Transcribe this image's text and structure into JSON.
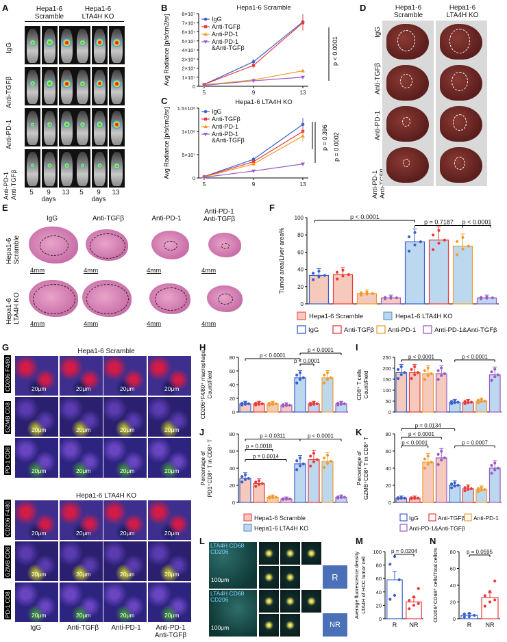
{
  "panel_labels": {
    "A": "A",
    "B": "B",
    "C": "C",
    "D": "D",
    "E": "E",
    "F": "F",
    "G": "G",
    "H": "H",
    "I": "I",
    "J": "J",
    "K": "K",
    "L": "L",
    "M": "M",
    "N": "N"
  },
  "panelA": {
    "col_groups": [
      "Hepa1-6\nScramble",
      "Hepa1-6\nLTA4H KO"
    ],
    "row_labels": [
      "IgG",
      "Anti-TGFβ",
      "Anti-PD-1",
      "Anti-PD-1\nAnti-TGFβ"
    ],
    "day_ticks": [
      "5",
      "9",
      "13",
      "5",
      "9",
      "13"
    ],
    "xlabel": "days"
  },
  "panelB": {
    "title": "Hepa1-6 Scramble",
    "ylabel": "Avg Radiance [p/s/cm2/sr]",
    "pvalue": "p < 0.0001"
  },
  "panelC": {
    "title": "Hepa1-6 LTA4H KO",
    "ylabel": "Avg Radiance [p/s/cm2/sr]",
    "pvalue1": "p = 0.396",
    "pvalue2": "p = 0.0002"
  },
  "panelD": {
    "col_labels": [
      "Hepa1-6\nScramble",
      "Hepa1-6\nLTA4H KO"
    ],
    "row_labels": [
      "IgG",
      "Anti-TGFβ",
      "Anti-PD-1",
      "Anti-PD-1\nAnti-TGFβ"
    ]
  },
  "panelE": {
    "col_labels": [
      "IgG",
      "Anti-TGFβ",
      "Anti-PD-1",
      "Anti-PD-1\nAnti-TGFβ"
    ],
    "row_labels": [
      "Hepa1-6\nScramble",
      "Hepa1-6\nLTA4H KO"
    ],
    "scale": "4mm"
  },
  "panelF": {
    "ylabel": "Tumor area/Liver area%",
    "p1": "p < 0.0001",
    "p2": "p = 0.7187",
    "p3": "p < 0.0001"
  },
  "panelG": {
    "title1": "Hepa1-6 Scramble",
    "title2": "Hepa1-6 LTA4H KO",
    "row_labels": [
      "CD206 F4/80",
      "GZMB CD8",
      "PD-1 CD8"
    ],
    "col_labels": [
      "IgG",
      "Anti-TGFβ",
      "Anti-PD-1",
      "Anti-PD-1\nAnti-TGFβ"
    ],
    "scale": "20μm"
  },
  "panelH": {
    "ylabel": "CD206⁺F4/80⁺ macrophage\nCount/Field",
    "p1": "p < 0.0001",
    "p2": "p < 0.0001",
    "p3": "p < 0.0001"
  },
  "panelI": {
    "ylabel": "CD8⁺ T cells\nCount/Field",
    "p1": "p < 0.0001",
    "p2": "p < 0.0001"
  },
  "panelJ": {
    "ylabel": "Percentage of\nPD1⁺CD8⁺ T in CD8⁺ T",
    "p1": "p = 0.0311",
    "p2": "p = 0.0018",
    "p3": "p = 0.0014",
    "p4": "p < 0.0001"
  },
  "panelK": {
    "ylabel": "Percentage of\nGZMB⁺CD8⁺ T in CD8⁺ T",
    "p1": "p = 0.0134",
    "p2": "p < 0.0001",
    "p3": "p < 0.0001",
    "p4": "p = 0.0007"
  },
  "panelL": {
    "label_top": "LTA4H CD68\nCD206",
    "label_bottom": "LTA4H CD68\nCD206",
    "scale": "100μm",
    "tag1": "R",
    "tag2": "NR"
  },
  "panelM": {
    "ylabel": "Average fluorescence density\nLTA4H of HCC tumor cell",
    "pvalue": "p = 0.0204"
  },
  "panelN": {
    "ylabel": "CD206⁺CD68⁺ cells/Total cells%",
    "pvalue": "p = 0.0595"
  },
  "legend_groups": [
    "Hepa1-6 Scramble",
    "Hepa1-6 LTA4H KO"
  ],
  "legend_treat": [
    "IgG",
    "Anti-TGFβ",
    "Anti-PD-1",
    "Anti-PD-1&Anti-TGFβ"
  ],
  "colors": {
    "igg": "#3a5fcd",
    "tgfb": "#e83a3a",
    "pd1": "#f29b2b",
    "combo": "#9a5cc6",
    "scr_fill": "#f6c9bd",
    "ko_fill": "#bcd8ee"
  },
  "chart_data": [
    {
      "id": "B",
      "type": "line",
      "title": "Hepa1-6 Scramble",
      "xlabel": "days",
      "ylabel": "Avg Radiance [p/s/cm2/sr]",
      "x": [
        5,
        9,
        13
      ],
      "ylim": [
        0,
        80000000
      ],
      "yticks": [
        "0",
        "1×10⁷",
        "2×10⁷",
        "3×10⁷",
        "4×10⁷",
        "5×10⁷",
        "6×10⁷",
        "7×10⁷",
        "8×10⁷"
      ],
      "series": [
        {
          "name": "IgG",
          "values": [
            2000000,
            27000000,
            71000000
          ]
        },
        {
          "name": "Anti-TGFβ",
          "values": [
            2000000,
            23000000,
            70000000
          ]
        },
        {
          "name": "Anti-PD-1",
          "values": [
            1500000,
            7000000,
            17000000
          ]
        },
        {
          "name": "Anti-PD-1\n&Anti-TGFβ",
          "values": [
            1000000,
            6000000,
            10000000
          ]
        }
      ]
    },
    {
      "id": "C",
      "type": "line",
      "title": "Hepa1-6 LTA4H KO",
      "xlabel": "days",
      "ylabel": "Avg Radiance [p/s/cm2/sr]",
      "x": [
        5,
        9,
        13
      ],
      "ylim": [
        0,
        150000000
      ],
      "yticks": [
        "0",
        "5×10⁷",
        "1×10⁸",
        "1.5×10⁸"
      ],
      "series": [
        {
          "name": "IgG",
          "values": [
            3000000,
            40000000,
            115000000
          ]
        },
        {
          "name": "Anti-TGFβ",
          "values": [
            2500000,
            35000000,
            100000000
          ]
        },
        {
          "name": "Anti-PD-1",
          "values": [
            2000000,
            30000000,
            90000000
          ]
        },
        {
          "name": "Anti-PD-1\n&Anti-TGFβ",
          "values": [
            1500000,
            15000000,
            30000000
          ]
        }
      ]
    },
    {
      "id": "F",
      "type": "bar",
      "ylabel": "Tumor area/Liver area%",
      "ylim": [
        0,
        100
      ],
      "yticks": [
        "0",
        "20",
        "40",
        "60",
        "80",
        "100"
      ],
      "values": [
        33,
        34,
        12,
        7,
        72,
        74,
        67,
        7
      ]
    },
    {
      "id": "H",
      "type": "bar",
      "ylabel": "CD206⁺F4/80⁺ macrophage Count/Field",
      "ylim": [
        0,
        80
      ],
      "yticks": [
        "0",
        "20",
        "40",
        "60",
        "80"
      ],
      "values": [
        12,
        12,
        12,
        10,
        50,
        12,
        50,
        12
      ]
    },
    {
      "id": "I",
      "type": "bar",
      "ylabel": "CD8⁺ T cells Count/Field",
      "ylim": [
        0,
        250
      ],
      "yticks": [
        "0",
        "50",
        "100",
        "150",
        "200",
        "250"
      ],
      "values": [
        180,
        180,
        175,
        175,
        45,
        45,
        50,
        170
      ]
    },
    {
      "id": "J",
      "type": "bar",
      "ylabel": "Percentage of PD1⁺CD8⁺ T in CD8⁺ T",
      "ylim": [
        0,
        80
      ],
      "yticks": [
        "0",
        "20",
        "40",
        "60",
        "80"
      ],
      "values": [
        28,
        22,
        6,
        4,
        45,
        50,
        48,
        6
      ]
    },
    {
      "id": "K",
      "type": "bar",
      "ylabel": "Percentage of GZMB⁺CD8⁺ T in CD8⁺ T",
      "ylim": [
        0,
        80
      ],
      "yticks": [
        "0",
        "20",
        "40",
        "60",
        "80"
      ],
      "values": [
        5,
        5,
        47,
        52,
        20,
        16,
        15,
        40
      ]
    },
    {
      "id": "M",
      "type": "bar",
      "categories": [
        "R",
        "NR"
      ],
      "ylabel": "Average fluorescence density LTA4H of HCC tumor cell",
      "ylim": [
        0,
        100
      ],
      "yticks": [
        "0",
        "20",
        "40",
        "60",
        "80",
        "100"
      ],
      "values": [
        58,
        25
      ]
    },
    {
      "id": "N",
      "type": "bar",
      "categories": [
        "R",
        "NR"
      ],
      "ylabel": "CD206⁺CD68⁺ cells/Total cells%",
      "ylim": [
        0,
        80
      ],
      "yticks": [
        "0",
        "20",
        "40",
        "60",
        "80"
      ],
      "values": [
        4,
        25
      ]
    }
  ]
}
